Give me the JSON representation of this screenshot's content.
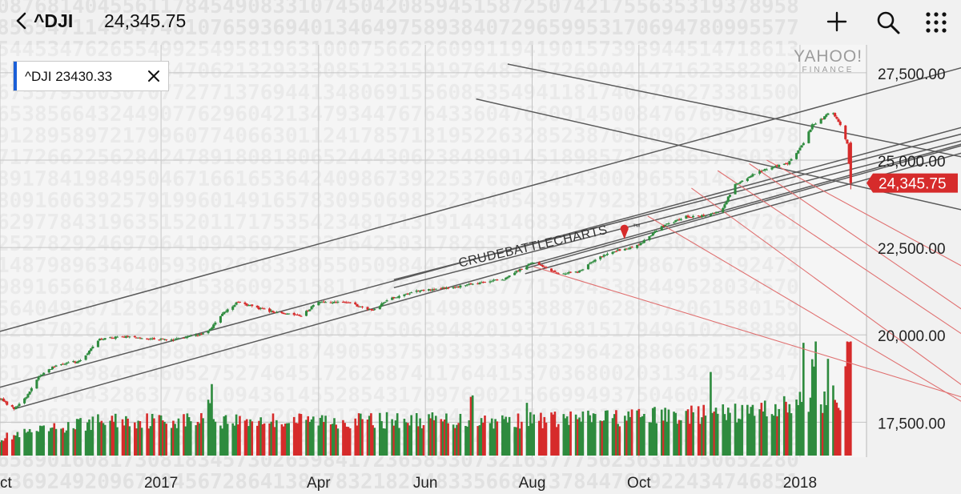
{
  "header": {
    "symbol": "^DJI",
    "price": "24,345.75"
  },
  "legend_chip": {
    "label": "^DJI 23430.33"
  },
  "logo": {
    "main": "YAHOO!",
    "sub": "FINANCE"
  },
  "icons": {
    "back": "chevron-left-icon",
    "add": "plus-icon",
    "search": "search-icon",
    "menu": "grid-menu-icon",
    "close": "close-icon",
    "pin": "map-pin-icon"
  },
  "colors": {
    "up": "#2e8b3e",
    "down": "#d62b2b",
    "price_tag": "#d62b2b",
    "trendline": "#5a5a5a",
    "red_lines": "#e07070",
    "accent": "#1a5fd8"
  },
  "chart_data": {
    "type": "candlestick",
    "series_label": "^DJI",
    "last_price_label": "24,345.75",
    "x_tick_labels": [
      "ct",
      "2017",
      "Apr",
      "Jun",
      "Aug",
      "Oct",
      "2018"
    ],
    "y_tick_labels": [
      "27,500.00",
      "25,000.00",
      "22,500.00",
      "20,000.00",
      "17,500.00"
    ],
    "y_ticks": [
      27500,
      25000,
      22500,
      20000,
      17500
    ],
    "ylim": [
      16500,
      28300
    ],
    "x_range_days": [
      0,
      495
    ],
    "x_tick_days": [
      0,
      92,
      182,
      243,
      304,
      365,
      457
    ],
    "price_path": [
      {
        "d": 0,
        "v": 18170
      },
      {
        "d": 8,
        "v": 17880
      },
      {
        "d": 15,
        "v": 18200
      },
      {
        "d": 22,
        "v": 18800
      },
      {
        "d": 32,
        "v": 19150
      },
      {
        "d": 46,
        "v": 19250
      },
      {
        "d": 57,
        "v": 19900
      },
      {
        "d": 72,
        "v": 19950
      },
      {
        "d": 85,
        "v": 19900
      },
      {
        "d": 98,
        "v": 19850
      },
      {
        "d": 108,
        "v": 19950
      },
      {
        "d": 118,
        "v": 20050
      },
      {
        "d": 128,
        "v": 20650
      },
      {
        "d": 136,
        "v": 20950
      },
      {
        "d": 145,
        "v": 20800
      },
      {
        "d": 160,
        "v": 20600
      },
      {
        "d": 172,
        "v": 20560
      },
      {
        "d": 182,
        "v": 20950
      },
      {
        "d": 198,
        "v": 20940
      },
      {
        "d": 212,
        "v": 20700
      },
      {
        "d": 224,
        "v": 21050
      },
      {
        "d": 240,
        "v": 21270
      },
      {
        "d": 262,
        "v": 21380
      },
      {
        "d": 288,
        "v": 21600
      },
      {
        "d": 304,
        "v": 22080
      },
      {
        "d": 312,
        "v": 21900
      },
      {
        "d": 320,
        "v": 21740
      },
      {
        "d": 330,
        "v": 21800
      },
      {
        "d": 345,
        "v": 22300
      },
      {
        "d": 365,
        "v": 22580
      },
      {
        "d": 378,
        "v": 23100
      },
      {
        "d": 392,
        "v": 23390
      },
      {
        "d": 402,
        "v": 23400
      },
      {
        "d": 412,
        "v": 23560
      },
      {
        "d": 420,
        "v": 24300
      },
      {
        "d": 430,
        "v": 24600
      },
      {
        "d": 438,
        "v": 24760
      },
      {
        "d": 450,
        "v": 24900
      },
      {
        "d": 458,
        "v": 25400
      },
      {
        "d": 464,
        "v": 26000
      },
      {
        "d": 470,
        "v": 26200
      },
      {
        "d": 475,
        "v": 26450
      },
      {
        "d": 479,
        "v": 26100
      },
      {
        "d": 484,
        "v": 25500
      },
      {
        "d": 486,
        "v": 24345
      }
    ],
    "volume_profile": [
      {
        "d": 0,
        "v": 0.25
      },
      {
        "d": 60,
        "v": 0.5
      },
      {
        "d": 180,
        "v": 0.5
      },
      {
        "d": 300,
        "v": 0.5
      },
      {
        "d": 360,
        "v": 0.55
      },
      {
        "d": 420,
        "v": 0.6
      },
      {
        "d": 486,
        "v": 0.85
      }
    ],
    "volume_spikes_days": [
      120,
      270,
      300,
      405,
      460,
      465,
      474,
      483,
      486
    ],
    "annotation": {
      "text": "CRUDEBATTLECHARTS",
      "mark": "™",
      "day": 305,
      "value": 22420,
      "angle_deg": -12.8
    },
    "trendlines_gray": [
      {
        "d1": 0,
        "v1": 20100,
        "d2": 495,
        "v2": 26900
      },
      {
        "d1": 0,
        "v1": 18500,
        "d2": 495,
        "v2": 25200
      },
      {
        "d1": 8,
        "v1": 17880,
        "d2": 495,
        "v2": 24700
      },
      {
        "d1": 225,
        "v1": 21580,
        "d2": 495,
        "v2": 25050
      },
      {
        "d1": 225,
        "v1": 21350,
        "d2": 495,
        "v2": 24850
      },
      {
        "d1": 300,
        "v1": 21900,
        "d2": 495,
        "v2": 24650
      },
      {
        "d1": 300,
        "v1": 21750,
        "d2": 495,
        "v2": 24450
      },
      {
        "d1": 290,
        "v1": 27750,
        "d2": 495,
        "v2": 25650
      },
      {
        "d1": 272,
        "v1": 26750,
        "d2": 495,
        "v2": 24200
      }
    ],
    "trendlines_red": [
      {
        "d1": 305,
        "v1": 21950,
        "d2": 495,
        "v2": 19050
      },
      {
        "d1": 370,
        "v1": 23400,
        "d2": 495,
        "v2": 19700
      },
      {
        "d1": 395,
        "v1": 24200,
        "d2": 495,
        "v2": 20550
      },
      {
        "d1": 410,
        "v1": 24700,
        "d2": 495,
        "v2": 21850
      },
      {
        "d1": 428,
        "v1": 24900,
        "d2": 495,
        "v2": 22600
      },
      {
        "d1": 438,
        "v1": 25000,
        "d2": 495,
        "v2": 23450
      }
    ]
  }
}
